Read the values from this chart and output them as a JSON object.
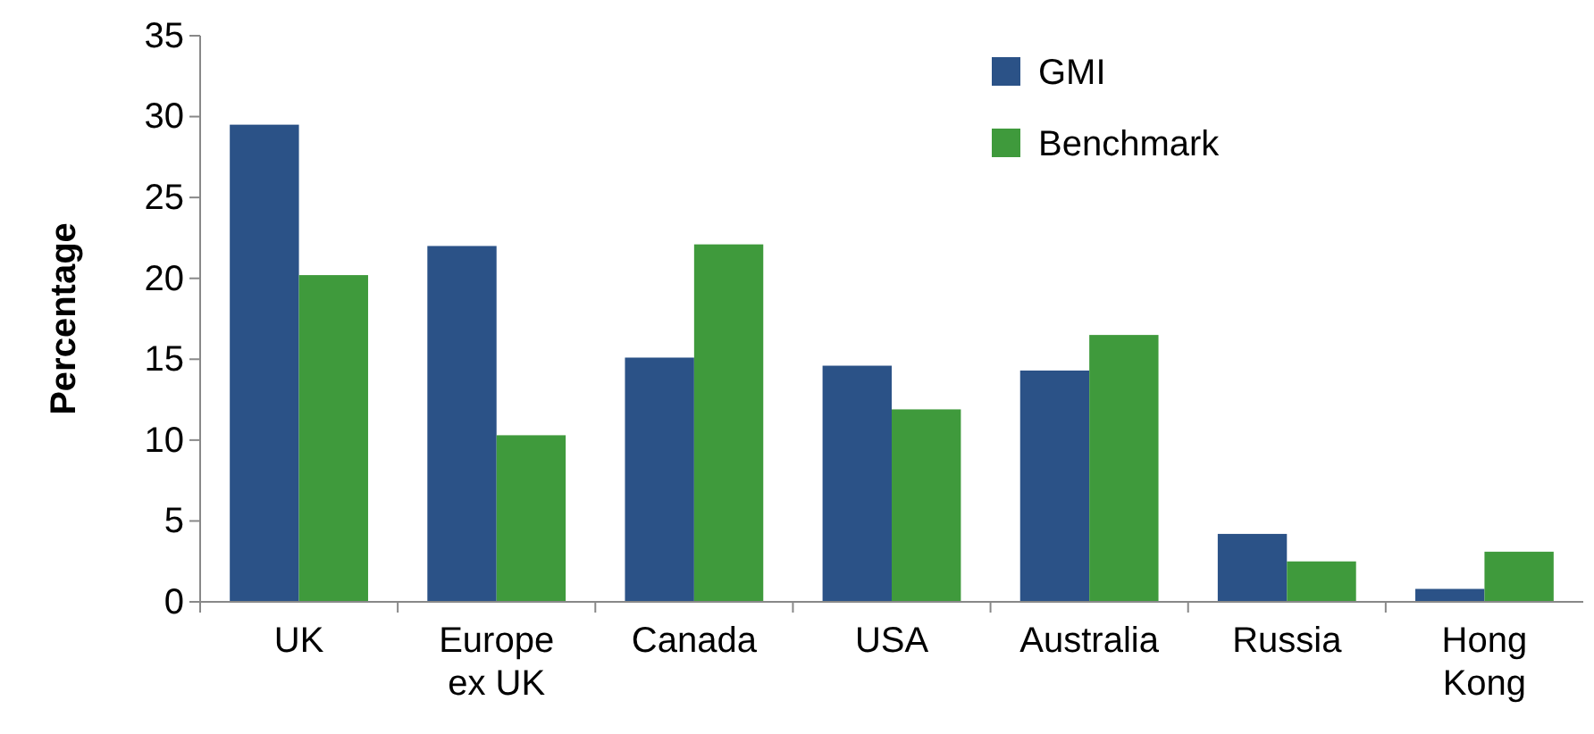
{
  "chart_data": {
    "type": "bar",
    "ylabel": "Percentage",
    "categories": [
      "UK",
      "Europe ex UK",
      "Canada",
      "USA",
      "Australia",
      "Russia",
      "Hong Kong"
    ],
    "series": [
      {
        "name": "GMI",
        "color": "#2b5287",
        "values": [
          29.5,
          22,
          15.1,
          14.6,
          14.3,
          4.2,
          0.8
        ]
      },
      {
        "name": "Benchmark",
        "color": "#3f9a3c",
        "values": [
          20.2,
          10.3,
          22.1,
          11.9,
          16.5,
          2.5,
          3.1
        ]
      }
    ],
    "ylim": [
      0,
      35
    ],
    "yticks": [
      0,
      5,
      10,
      15,
      20,
      25,
      30,
      35
    ],
    "grid": false,
    "legend": "top"
  }
}
